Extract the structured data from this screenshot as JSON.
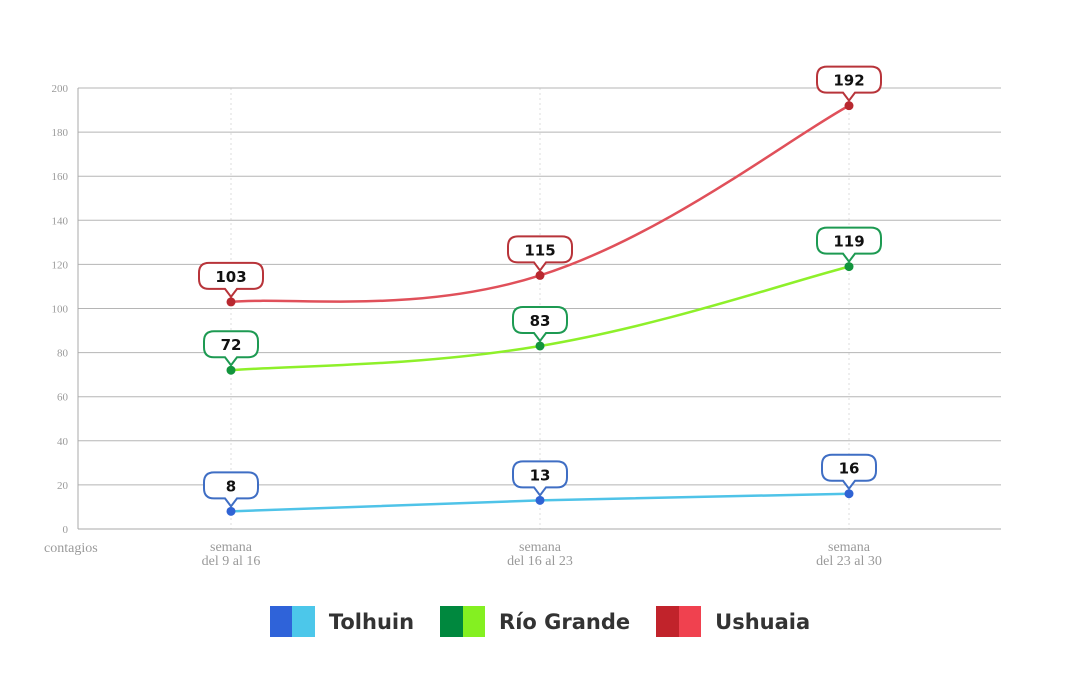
{
  "chart_data": {
    "type": "line",
    "title": "",
    "xlabel": "",
    "ylabel": "contagios",
    "ylim": [
      0,
      200
    ],
    "yticks": [
      0,
      20,
      40,
      60,
      80,
      100,
      120,
      140,
      160,
      180,
      200
    ],
    "grid": true,
    "categories": [
      [
        "semana",
        "del 9 al 16"
      ],
      [
        "semana",
        "del 16 al 23"
      ],
      [
        "semana",
        "del 23 al 30"
      ]
    ],
    "series": [
      {
        "name": "Tolhuin",
        "values": [
          8,
          13,
          16
        ],
        "color": "#4fc3e8",
        "marker_color": "#2f63d4",
        "bubble_border": "#3f6ec4"
      },
      {
        "name": "Río Grande",
        "values": [
          72,
          83,
          119
        ],
        "color": "#8ef02a",
        "marker_color": "#12943d",
        "bubble_border": "#1d9a52"
      },
      {
        "name": "Ushuaia",
        "values": [
          103,
          115,
          192
        ],
        "color": "#e0505a",
        "marker_color": "#b8282f",
        "bubble_border": "#b8343a"
      }
    ],
    "legend_position": "bottom-center"
  },
  "legend": [
    {
      "label": "Tolhuin",
      "colors": [
        "#2f63d9",
        "#4cc7ea"
      ]
    },
    {
      "label": "Río Grande",
      "colors": [
        "#00883e",
        "#84f021"
      ]
    },
    {
      "label": "Ushuaia",
      "colors": [
        "#c1232b",
        "#f0414f"
      ]
    }
  ]
}
